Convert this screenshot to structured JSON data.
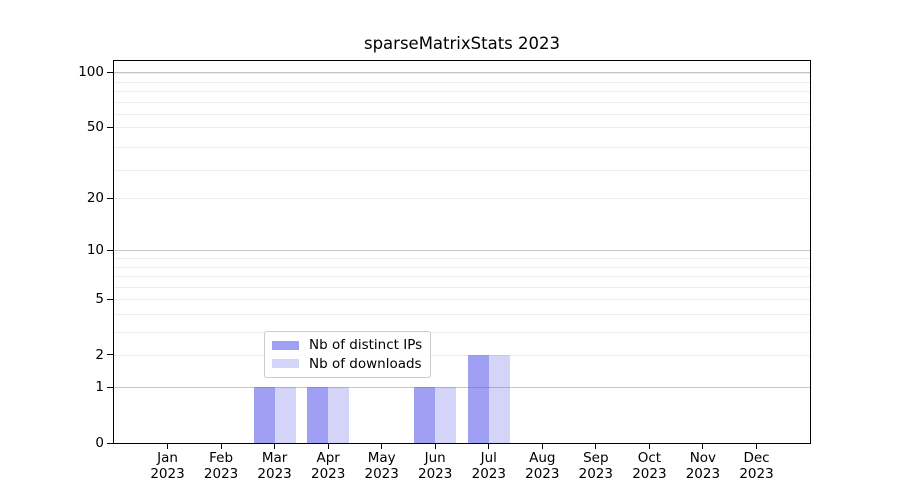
{
  "chart_data": {
    "type": "bar",
    "title": "sparseMatrixStats 2023",
    "categories": [
      "Jan",
      "Feb",
      "Mar",
      "Apr",
      "May",
      "Jun",
      "Jul",
      "Aug",
      "Sep",
      "Oct",
      "Nov",
      "Dec"
    ],
    "year_label": "2023",
    "series": [
      {
        "name": "Nb of distinct IPs",
        "color": "rgba(100,100,235,0.62)",
        "values": [
          0,
          0,
          1,
          1,
          0,
          1,
          2,
          0,
          0,
          0,
          0,
          0
        ]
      },
      {
        "name": "Nb of downloads",
        "color": "rgba(100,100,235,0.28)",
        "values": [
          0,
          0,
          1,
          1,
          0,
          1,
          2,
          0,
          0,
          0,
          0,
          0
        ]
      }
    ],
    "y_ticks": [
      0,
      1,
      2,
      5,
      10,
      20,
      50,
      100
    ],
    "yscale": "log10(1+x)",
    "ylim": [
      0,
      113
    ],
    "xlabel": "",
    "ylabel": "",
    "grid": true,
    "legend_position": "bottom-center-inside"
  },
  "colors": {
    "bar_distinct_ips": "#a4a4f2",
    "bar_downloads": "#d6d6f8",
    "grid_major": "#c6c6c6",
    "grid_minor": "#ededed",
    "axis": "#000000",
    "background": "#ffffff",
    "legend_border": "#cccccc"
  }
}
